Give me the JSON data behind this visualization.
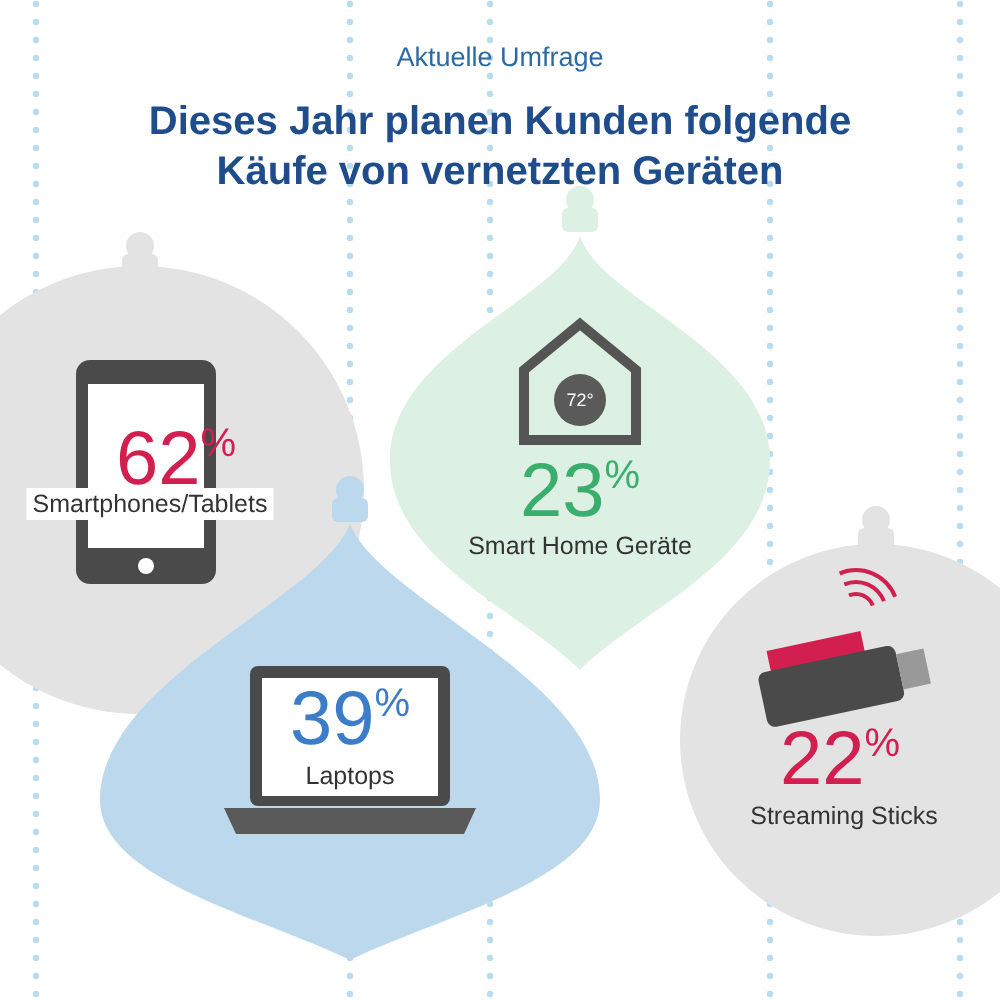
{
  "chart_data": {
    "type": "other",
    "subtitle": "Aktuelle Umfrage",
    "title": "Dieses Jahr planen Kunden folgende Käufe von vernetzten Geräten",
    "categories": [
      "Smartphones/Tablets",
      "Laptops",
      "Smart Home Geräte",
      "Streaming Sticks"
    ],
    "values": [
      62,
      39,
      23,
      22
    ],
    "value_labels": [
      "62$^{%}$",
      "39$^{%}$",
      "23$^{%}$",
      "22$^{%}$"
    ],
    "annotations": [
      "72°"
    ]
  }
}
